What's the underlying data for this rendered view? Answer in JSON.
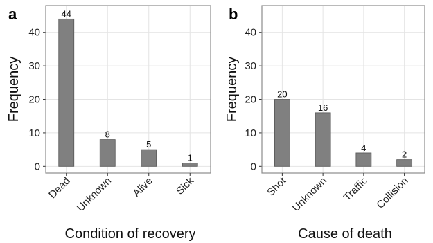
{
  "chart_data": [
    {
      "type": "bar",
      "panel_label": "a",
      "categories": [
        "Dead",
        "Unknown",
        "Alive",
        "Sick"
      ],
      "values": [
        44,
        8,
        5,
        1
      ],
      "data_labels": [
        "44",
        "8",
        "5",
        "1"
      ],
      "xlabel": "Condition of recovery",
      "ylabel": "Frequency",
      "ylim": [
        -2,
        48
      ],
      "yticks": [
        "0",
        "10",
        "20",
        "30",
        "40"
      ],
      "grid": true,
      "bar_color": "#808080"
    },
    {
      "type": "bar",
      "panel_label": "b",
      "categories": [
        "Shot",
        "Unknown",
        "Traffic",
        "Collision"
      ],
      "values": [
        20,
        16,
        4,
        2
      ],
      "data_labels": [
        "20",
        "16",
        "4",
        "2"
      ],
      "xlabel": "Cause of death",
      "ylabel": "Frequency",
      "ylim": [
        -2,
        48
      ],
      "yticks": [
        "0",
        "10",
        "20",
        "30",
        "40"
      ],
      "grid": true,
      "bar_color": "#808080"
    }
  ]
}
